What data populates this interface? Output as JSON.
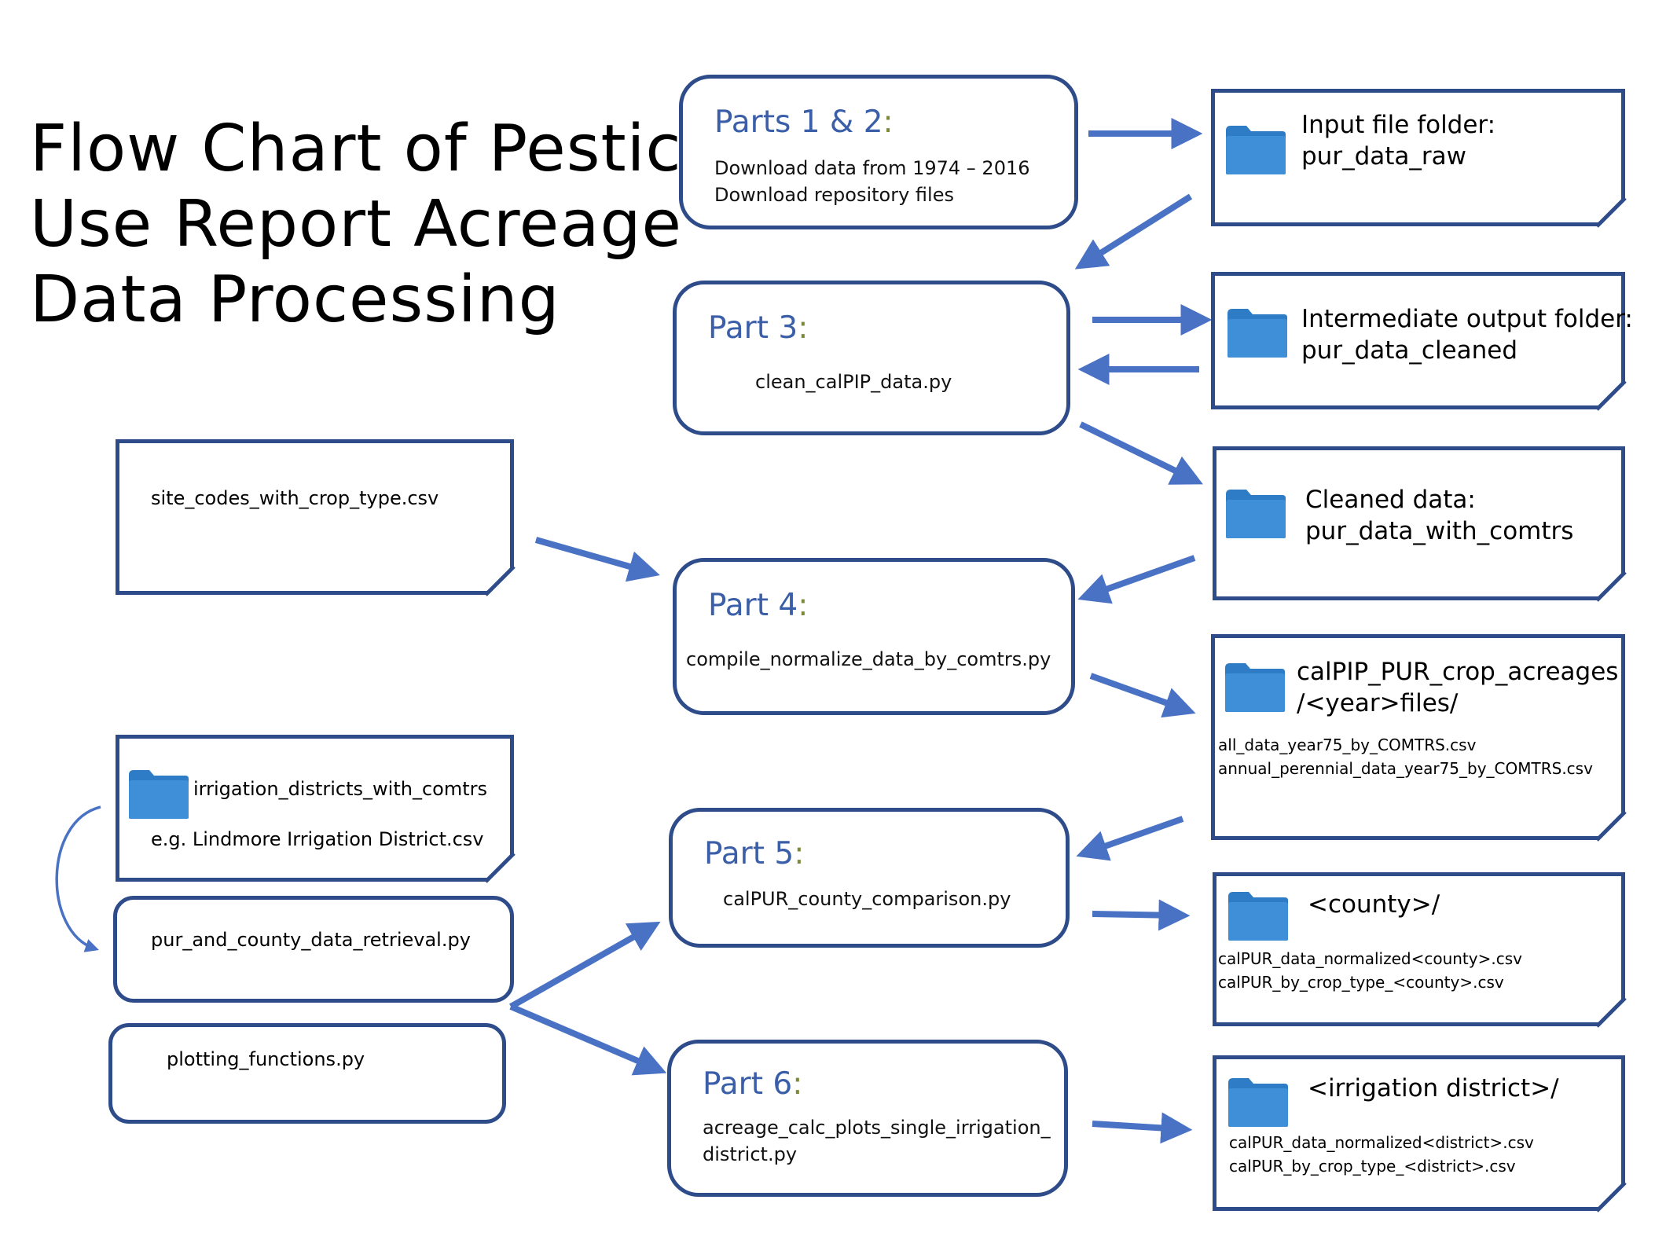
{
  "title_lines": [
    "Flow Chart of Pesticide",
    "Use Report Acreage",
    "Data Processing"
  ],
  "parts": {
    "p12": {
      "title": "Parts 1 & 2",
      "colon": ":",
      "lines": [
        "Download data from 1974 – 2016",
        "Download repository files"
      ]
    },
    "p3": {
      "title": "Part 3",
      "colon": ":",
      "lines": [
        "clean_calPIP_data.py"
      ]
    },
    "p4": {
      "title": "Part 4",
      "colon": ":",
      "lines": [
        "compile_normalize_data_by_comtrs.py"
      ]
    },
    "p5": {
      "title": "Part 5",
      "colon": ":",
      "lines": [
        "calPUR_county_comparison.py"
      ]
    },
    "p6": {
      "title": "Part 6",
      "colon": ":",
      "lines": [
        "acreage_calc_plots_single_irrigation_",
        "district.py"
      ]
    }
  },
  "folders": {
    "raw": {
      "title_lines": [
        "Input file folder:",
        "pur_data_raw"
      ]
    },
    "cleaned": {
      "title_lines": [
        "Intermediate output folder:",
        "pur_data_cleaned"
      ]
    },
    "comtrs": {
      "title_lines": [
        "Cleaned data:",
        "pur_data_with_comtrs"
      ]
    },
    "acreages": {
      "title_lines": [
        "calPIP_PUR_crop_acreages",
        "/<year>files/"
      ],
      "files": [
        "all_data_year75_by_COMTRS.csv",
        "annual_perennial_data_year75_by_COMTRS.csv"
      ]
    },
    "county": {
      "title_lines": [
        "<county>/"
      ],
      "files": [
        "calPUR_data_normalized<county>.csv",
        "calPUR_by_crop_type_<county>.csv"
      ]
    },
    "irrigation": {
      "title_lines": [
        "<irrigation district>/"
      ],
      "files": [
        "calPUR_data_normalized<district>.csv",
        "calPUR_by_crop_type_<district>.csv"
      ]
    }
  },
  "left": {
    "site_codes": "site_codes_with_crop_type.csv",
    "irrigation_folder": "irrigation_districts_with_comtrs",
    "irrigation_example": "e.g. Lindmore Irrigation District.csv",
    "retrieval": "pur_and_county_data_retrieval.py",
    "plotting": "plotting_functions.py"
  },
  "colors": {
    "arrow": "#4a72c4",
    "box_border": "#2f4c8a",
    "part_title": "#3a5ea8",
    "folder": "#3f8ed8"
  }
}
